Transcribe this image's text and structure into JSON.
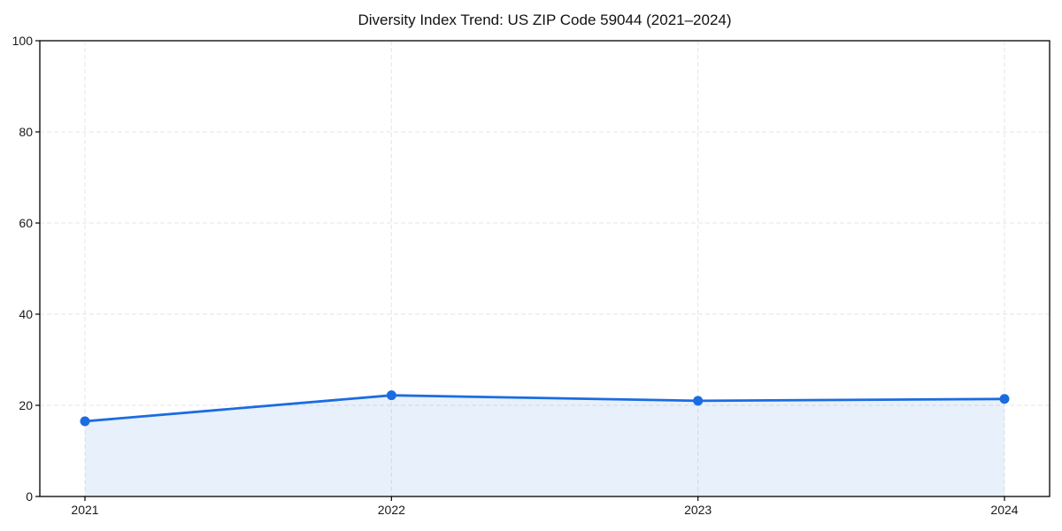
{
  "chart_data": {
    "type": "area",
    "title": "Diversity Index Trend: US ZIP Code 59044 (2021–2024)",
    "series_name": "Diversity Index",
    "categories": [
      "2021",
      "2022",
      "2023",
      "2024"
    ],
    "values": [
      16.5,
      22.2,
      21.0,
      21.4
    ],
    "xlabel": "",
    "ylabel": "",
    "ylim": [
      0,
      100
    ],
    "yticks": [
      0,
      20,
      40,
      60,
      80,
      100
    ],
    "grid": "dashed",
    "legend": "none",
    "marker": "circle",
    "colors": {
      "line": "#1b6ce1",
      "marker": "#1b6ce1",
      "fill_apparent": "#e9f1fc",
      "grid": "#e5e5e5",
      "spine": "#000000",
      "text": "#111111",
      "background": "#ffffff"
    }
  }
}
